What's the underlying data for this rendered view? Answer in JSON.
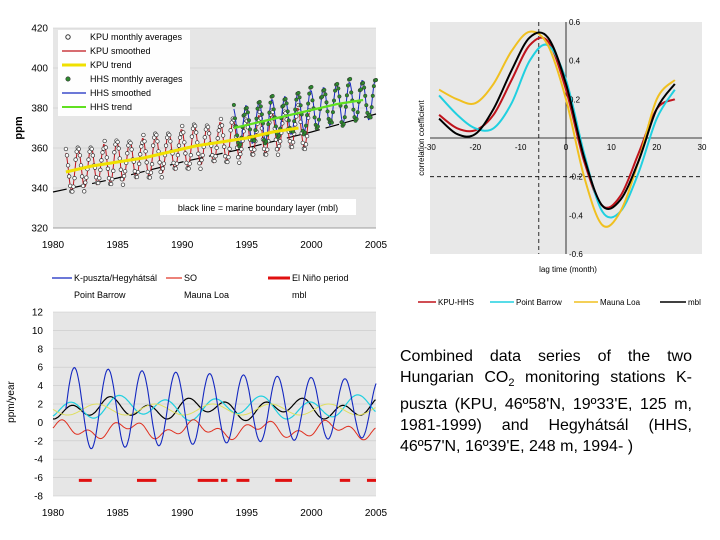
{
  "colors": {
    "kpu": "#c0141c",
    "hhs": "#1428c0",
    "hhs_trend": "#60e020",
    "kpu_trend": "#f0e000",
    "point_barrow": "#20d0e0",
    "mauna_loa": "#f0c020",
    "mbl": "#000000",
    "elnino": "#e01010",
    "so": "#e03020",
    "plot_bg": "#e6e6e6",
    "legend_bg": "#ffffff"
  },
  "caption": {
    "line1": "Combined data series of the two Hungarian CO",
    "sub": "2",
    "line2": " monitoring stations K-puszta (KPU, 46º58'N, 19º33'E, 125 m, 1981-1999) and Hegyhátsál (HHS, 46º57'N, 16º39'E, 248 m, 1994- )"
  },
  "chart_data": [
    {
      "type": "line",
      "ylabel": "ppm",
      "xlim": [
        1980,
        2005
      ],
      "ylim": [
        320,
        420
      ],
      "x_ticks": [
        "1980",
        "1985",
        "1990",
        "1995",
        "2000",
        "2005"
      ],
      "y_ticks": [
        "320",
        "340",
        "360",
        "380",
        "400",
        "420"
      ],
      "legend": [
        "KPU monthly averages",
        "KPU smoothed",
        "KPU trend",
        "HHS monthly averages",
        "HHS smoothed",
        "HHS trend"
      ],
      "annotation": "black line = marine boundary layer (mbl)",
      "series": [
        {
          "name": "KPU trend",
          "x": [
            1981,
            1983,
            1985,
            1987,
            1989,
            1991,
            1993,
            1995,
            1997,
            1999
          ],
          "values": [
            348,
            351,
            353,
            355,
            358,
            361,
            363,
            365,
            368,
            370
          ]
        },
        {
          "name": "HHS trend",
          "x": [
            1994,
            1996,
            1998,
            2000,
            2002,
            2004
          ],
          "values": [
            370,
            373,
            376,
            379,
            382,
            384
          ]
        },
        {
          "name": "mbl",
          "x": [
            1980,
            1985,
            1990,
            1995,
            2000,
            2005
          ],
          "values": [
            338,
            345,
            353,
            360,
            368,
            377
          ]
        }
      ]
    },
    {
      "type": "line",
      "ylabel": "correlation coefficient",
      "xlabel": "lag time (month)",
      "xlim": [
        -30,
        30
      ],
      "ylim": [
        -0.6,
        0.6
      ],
      "x_ticks": [
        "-30",
        "-20",
        "-10",
        "0",
        "10",
        "20",
        "30"
      ],
      "y_ticks": [
        "-0.6",
        "-0.4",
        "-0.2",
        "0.2",
        "0.4",
        "0.6"
      ],
      "legend": [
        "KPU-HHS",
        "Point Barrow",
        "Mauna Loa",
        "mbl"
      ],
      "x": [
        -28,
        -24,
        -20,
        -16,
        -12,
        -8,
        -4,
        0,
        4,
        8,
        12,
        16,
        20,
        24
      ],
      "series": [
        {
          "name": "KPU-HHS",
          "values": [
            0.12,
            0.05,
            0.04,
            0.12,
            0.3,
            0.48,
            0.5,
            0.25,
            -0.12,
            -0.35,
            -0.3,
            -0.08,
            0.15,
            0.2
          ]
        },
        {
          "name": "Point Barrow",
          "values": [
            0.22,
            0.12,
            0.05,
            0.05,
            0.18,
            0.4,
            0.48,
            0.3,
            -0.08,
            -0.38,
            -0.38,
            -0.18,
            0.1,
            0.25
          ]
        },
        {
          "name": "Mauna Loa",
          "values": [
            0.25,
            0.2,
            0.18,
            0.28,
            0.45,
            0.55,
            0.48,
            0.2,
            -0.2,
            -0.45,
            -0.38,
            -0.12,
            0.2,
            0.3
          ]
        },
        {
          "name": "mbl",
          "values": [
            0.1,
            0.02,
            0.02,
            0.15,
            0.35,
            0.52,
            0.52,
            0.28,
            -0.1,
            -0.35,
            -0.32,
            -0.12,
            0.15,
            0.28
          ]
        }
      ]
    },
    {
      "type": "line",
      "ylabel": "ppm/year",
      "xlim": [
        1980,
        2005
      ],
      "ylim": [
        -8,
        12
      ],
      "x_ticks": [
        "1980",
        "1985",
        "1990",
        "1995",
        "2000",
        "2005"
      ],
      "y_ticks": [
        "12",
        "10",
        "8",
        "6",
        "4",
        "2",
        "0",
        "-2",
        "-4",
        "-6",
        "-8"
      ],
      "legend": [
        "K-puszta/Hegyhátsál",
        "SO",
        "El Niño period",
        "Point Barrow",
        "Mauna Loa",
        "mbl"
      ],
      "elnino_periods": [
        [
          1982.0,
          1983.0
        ],
        [
          1986.5,
          1988.0
        ],
        [
          1991.2,
          1992.8
        ],
        [
          1993.0,
          1993.5
        ],
        [
          1994.2,
          1995.2
        ],
        [
          1997.2,
          1998.5
        ],
        [
          2002.2,
          2003.0
        ],
        [
          2004.3,
          2005.0
        ]
      ]
    }
  ]
}
